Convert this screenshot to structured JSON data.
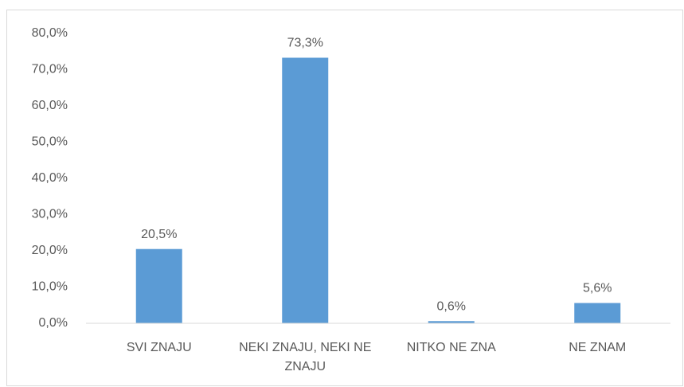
{
  "chart_data": {
    "type": "bar",
    "categories": [
      "SVI ZNAJU",
      "NEKI ZNAJU, NEKI NE ZNAJU",
      "NITKO NE ZNA",
      "NE ZNAM"
    ],
    "values": [
      20.5,
      73.3,
      0.6,
      5.6
    ],
    "value_labels": [
      "20,5%",
      "73,3%",
      "0,6%",
      "5,6%"
    ],
    "color": "#5b9bd5",
    "ylim": [
      0,
      80
    ],
    "yticks": [
      {
        "value": 0,
        "label": "0,0%"
      },
      {
        "value": 10,
        "label": "10,0%"
      },
      {
        "value": 20,
        "label": "20,0%"
      },
      {
        "value": 30,
        "label": "30,0%"
      },
      {
        "value": 40,
        "label": "40,0%"
      },
      {
        "value": 50,
        "label": "50,0%"
      },
      {
        "value": 60,
        "label": "60,0%"
      },
      {
        "value": 70,
        "label": "70,0%"
      },
      {
        "value": 80,
        "label": "80,0%"
      }
    ],
    "grid": false
  }
}
